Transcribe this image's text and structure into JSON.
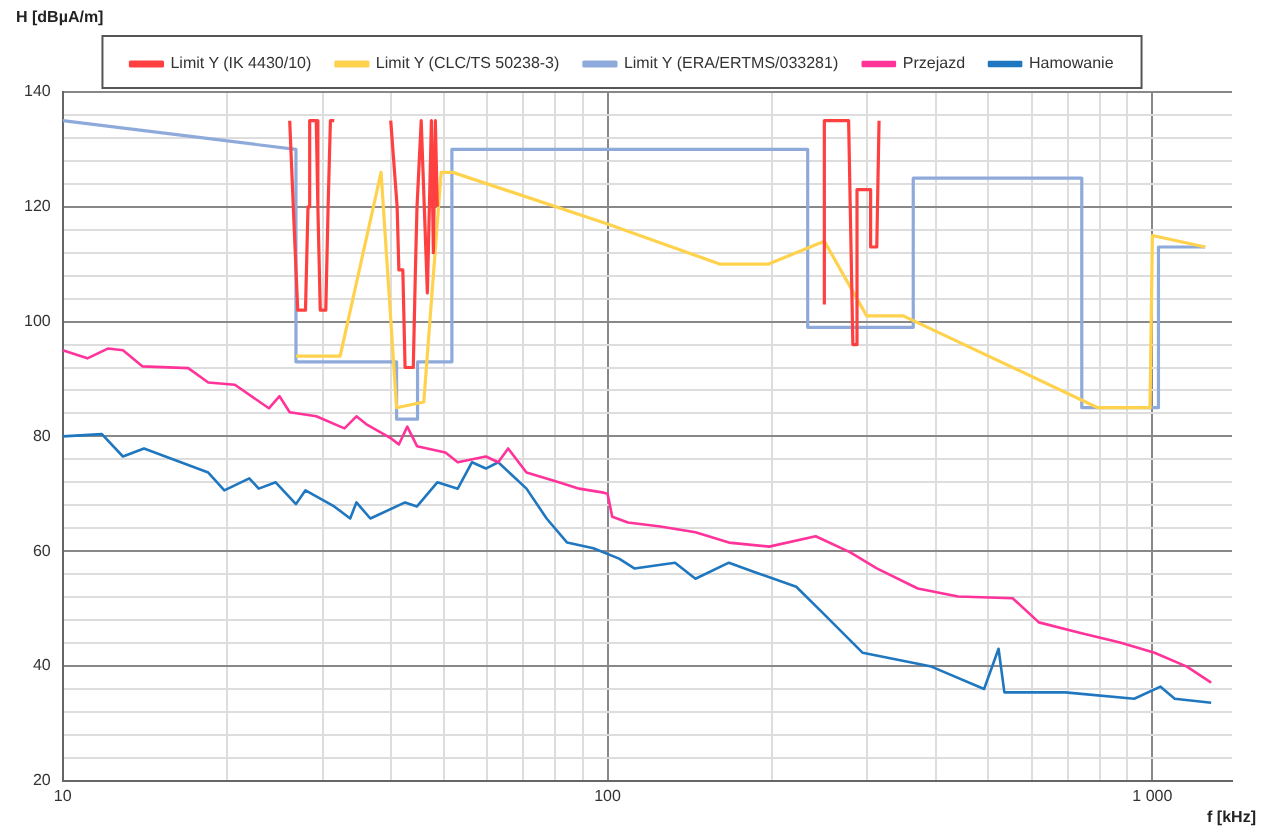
{
  "chart_data": {
    "type": "line",
    "xlabel": "f [kHz]",
    "ylabel": "H  [dBµA/m]",
    "log": "x",
    "xlim": [
      10,
      1400
    ],
    "ylim": [
      20,
      140
    ],
    "xticks": [
      10,
      {
        "value": 20,
        "label": null
      },
      {
        "value": 30,
        "label": null
      },
      {
        "value": 40,
        "label": null
      },
      {
        "value": 50,
        "label": null
      },
      {
        "value": 60,
        "label": null
      },
      {
        "value": 70,
        "label": null
      },
      {
        "value": 80,
        "label": null
      },
      {
        "value": 90,
        "label": null
      },
      100,
      {
        "value": 200,
        "label": null
      },
      {
        "value": 300,
        "label": null
      },
      {
        "value": 400,
        "label": null
      },
      {
        "value": 500,
        "label": null
      },
      {
        "value": 600,
        "label": null
      },
      {
        "value": 700,
        "label": null
      },
      {
        "value": 800,
        "label": null
      },
      {
        "value": 900,
        "label": null
      },
      {
        "value": 1000,
        "label": "1 000"
      }
    ],
    "yticks": [
      20,
      {
        "value": 24,
        "label": null
      },
      {
        "value": 28,
        "label": null
      },
      {
        "value": 32,
        "label": null
      },
      {
        "value": 36,
        "label": null
      },
      40,
      {
        "value": 44,
        "label": null
      },
      {
        "value": 48,
        "label": null
      },
      {
        "value": 52,
        "label": null
      },
      {
        "value": 56,
        "label": null
      },
      60,
      {
        "value": 64,
        "label": null
      },
      {
        "value": 68,
        "label": null
      },
      {
        "value": 72,
        "label": null
      },
      {
        "value": 76,
        "label": null
      },
      80,
      {
        "value": 84,
        "label": null
      },
      {
        "value": 88,
        "label": null
      },
      {
        "value": 92,
        "label": null
      },
      {
        "value": 96,
        "label": null
      },
      100,
      {
        "value": 104,
        "label": null
      },
      {
        "value": 108,
        "label": null
      },
      {
        "value": 112,
        "label": null
      },
      {
        "value": 116,
        "label": null
      },
      120,
      {
        "value": 124,
        "label": null
      },
      {
        "value": 128,
        "label": null
      },
      {
        "value": 132,
        "label": null
      },
      {
        "value": 136,
        "label": null
      },
      140
    ],
    "grid": true,
    "legend": "top",
    "marker": "none",
    "line_style": "solid",
    "series": [
      {
        "name": "Limit Y (IK 4430/10)",
        "color": "#ff4040",
        "x": [
          26.1,
          26.5,
          27.0,
          27.9,
          28.2,
          28.4,
          29.2,
          29.4,
          29.7,
          30.4,
          30.7,
          31.0,
          31.5,
          35,
          40.0,
          41.1,
          41.4,
          42.1,
          42.5,
          44.0,
          44.4,
          44.7,
          45.5,
          46.7,
          47.5,
          47.9,
          48.3,
          48.7,
          150,
          250,
          250,
          277,
          282,
          287,
          287,
          304,
          304,
          312,
          315
        ],
        "values": [
          135,
          120,
          102,
          102,
          120,
          135,
          135,
          120,
          102,
          102,
          120,
          135,
          135,
          null,
          135,
          120,
          109,
          109,
          92,
          92,
          109,
          120,
          135,
          105,
          135,
          112,
          135,
          120,
          null,
          103,
          135,
          135,
          96,
          96,
          123,
          123,
          113,
          113,
          135
        ]
      },
      {
        "name": "Limit Y (CLC/TS 50238-3)",
        "color": "#ffd24d",
        "x": [
          26.8,
          32.3,
          38.4,
          41.0,
          46.0,
          49.5,
          52.0,
          100,
          161,
          197,
          250,
          299,
          349,
          794,
          990,
          1000,
          1250
        ],
        "values": [
          94,
          94,
          126,
          85,
          86,
          126,
          126,
          117,
          110,
          110,
          114,
          101,
          101,
          85,
          85,
          115,
          113
        ]
      },
      {
        "name": "Limit Y (ERA/ERTMS/033281)",
        "color": "#8eaadb",
        "x": [
          10,
          26.8,
          26.8,
          41.0,
          41.0,
          44.8,
          44.8,
          51.8,
          51.8,
          233,
          233,
          364,
          364,
          742,
          742,
          1026,
          1026,
          1250
        ],
        "values": [
          135,
          130,
          93,
          93,
          83,
          83,
          93,
          93,
          130,
          130,
          99,
          99,
          125,
          125,
          85,
          85,
          113,
          113
        ]
      },
      {
        "name": "Przejazd",
        "color": "#ff3399",
        "x": [
          10,
          11.1,
          12.1,
          12.9,
          14.0,
          17.0,
          18.5,
          20.7,
          23.9,
          25.0,
          26.1,
          29.2,
          32.9,
          34.6,
          36.1,
          40.0,
          41.4,
          42.9,
          44.7,
          50.4,
          53.1,
          59.8,
          63.0,
          65.7,
          71.0,
          81.4,
          88.7,
          98.3,
          100,
          102,
          109,
          125,
          145,
          167,
          198,
          241,
          279,
          312,
          371,
          440,
          554,
          619,
          735,
          872,
          1009,
          1157,
          1282
        ],
        "values": [
          95,
          93.6,
          95.3,
          95,
          92.2,
          91.9,
          89.4,
          89,
          84.9,
          87,
          84.2,
          83.5,
          81.4,
          83.5,
          82.1,
          79.7,
          78.6,
          81.7,
          78.3,
          77.2,
          75.5,
          76.5,
          75.5,
          77.9,
          73.7,
          72,
          70.9,
          70.2,
          70,
          66,
          65,
          64.3,
          63.3,
          61.5,
          60.8,
          62.6,
          59.8,
          57,
          53.5,
          52.1,
          51.8,
          47.6,
          45.8,
          44.1,
          42.3,
          39.9,
          37.1
        ]
      },
      {
        "name": "Hamowanie",
        "color": "#1f77c0",
        "x": [
          10,
          11.8,
          12.9,
          14.1,
          18.5,
          19.8,
          22.0,
          22.9,
          24.6,
          26.8,
          27.9,
          31.5,
          33.7,
          34.6,
          36.7,
          42.5,
          44.7,
          48.7,
          53.1,
          56.4,
          59.8,
          63.0,
          71.0,
          77.3,
          84.3,
          94.2,
          105,
          112,
          133,
          145,
          167,
          187,
          222,
          248,
          294,
          393,
          491,
          522,
          535,
          692,
          926,
          1035,
          1099,
          1282
        ],
        "values": [
          80,
          80.4,
          76.5,
          77.9,
          73.7,
          70.6,
          72.7,
          70.9,
          72,
          68.2,
          70.6,
          67.8,
          65.7,
          68.5,
          65.7,
          68.5,
          67.8,
          72,
          70.9,
          75.5,
          74.4,
          75.5,
          70.9,
          65.7,
          61.5,
          60.5,
          58.7,
          57,
          58,
          55.2,
          58,
          56.3,
          53.8,
          49.3,
          42.3,
          39.9,
          36,
          43,
          35.4,
          35.4,
          34.3,
          36.4,
          34.3,
          33.6
        ]
      }
    ]
  }
}
